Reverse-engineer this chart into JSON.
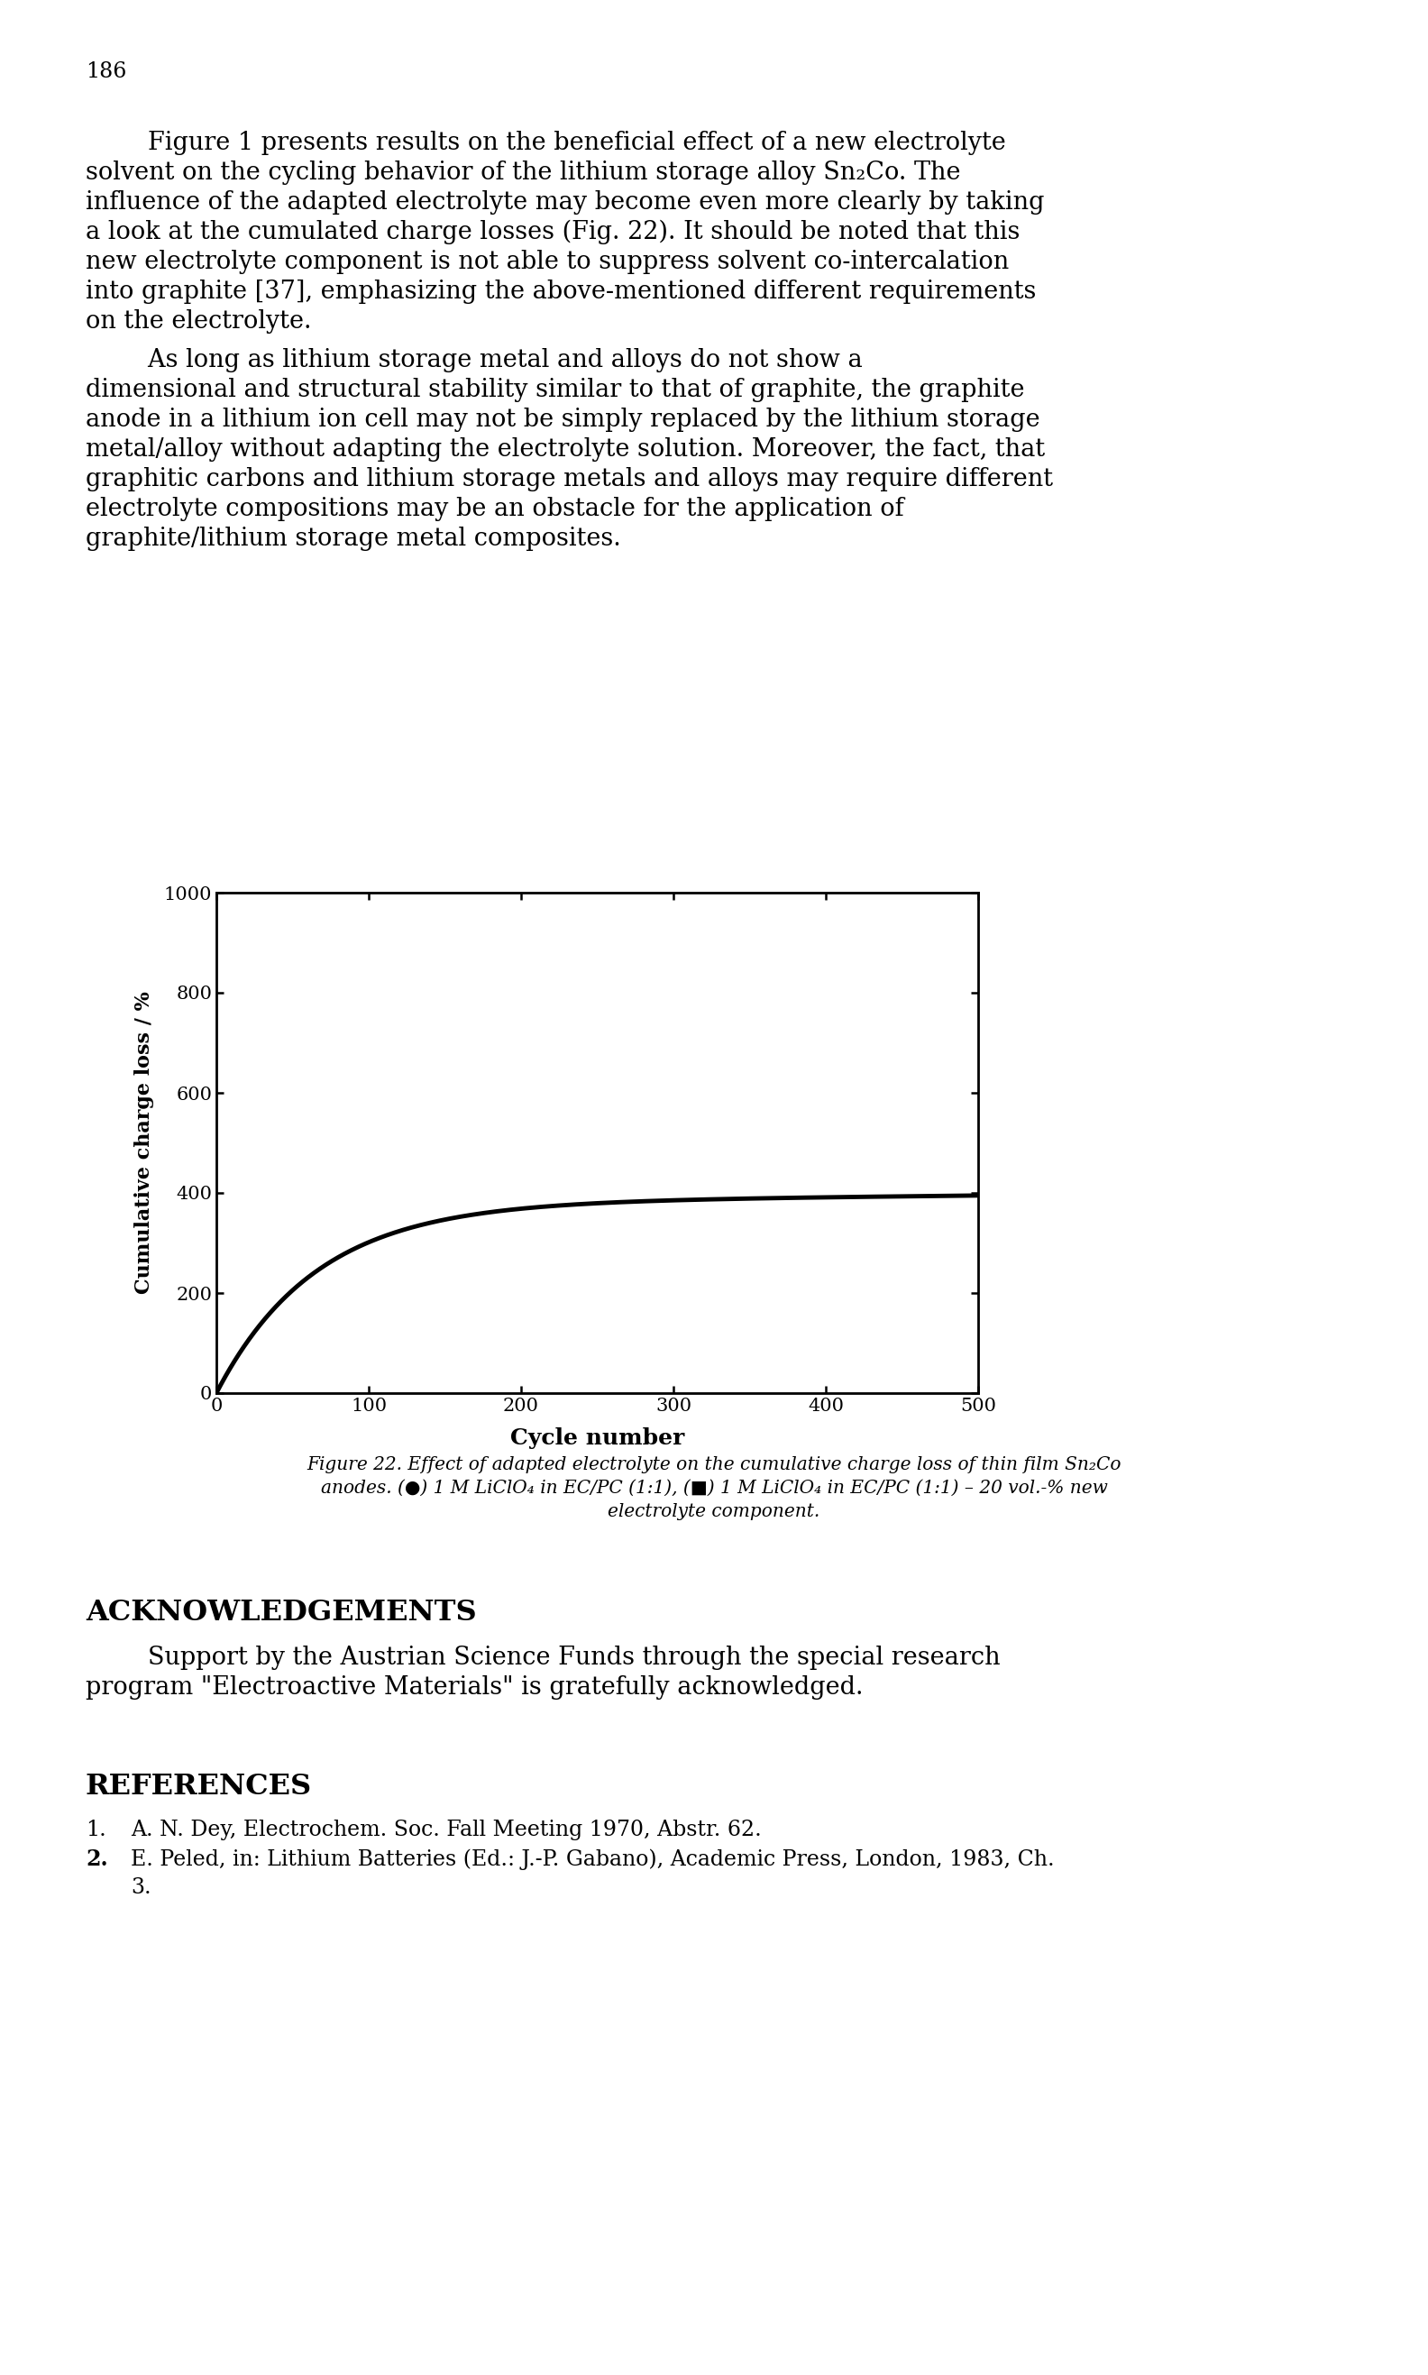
{
  "page_number": "186",
  "para1_indent": "        Figure 1 presents results on the beneficial effect of a new electrolyte",
  "para1_line2": "solvent on the cycling behavior of the lithium storage alloy Sn₂Co. The",
  "para1_line3": "influence of the adapted electrolyte may become even more clearly by taking",
  "para1_line4": "a look at the cumulated charge losses (Fig. 22). It should be noted that this",
  "para1_line5": "new electrolyte component is not able to suppress solvent co-intercalation",
  "para1_line6": "into graphite [37], emphasizing the above-mentioned different requirements",
  "para1_line7": "on the electrolyte.",
  "para2_indent": "        As long as lithium storage metal and alloys do not show a",
  "para2_line2": "dimensional and structural stability similar to that of graphite, the graphite",
  "para2_line3": "anode in a lithium ion cell may not be simply replaced by the lithium storage",
  "para2_line4": "metal/alloy without adapting the electrolyte solution. Moreover, the fact, that",
  "para2_line5": "graphitic carbons and lithium storage metals and alloys may require different",
  "para2_line6": "electrolyte compositions may be an obstacle for the application of",
  "para2_line7": "graphite/lithium storage metal composites.",
  "cap_line1": "Figure 22. Effect of adapted electrolyte on the cumulative charge loss of thin film Sn₂Co",
  "cap_line2": "anodes. (●) 1 M LiClO₄ in EC/PC (1:1), (■) 1 M LiClO₄ in EC/PC (1:1) – 20 vol.-% new",
  "cap_line3": "electrolyte component.",
  "ack_title": "ACKNOWLEDGEMENTS",
  "ack_line1": "        Support by the Austrian Science Funds through the special research",
  "ack_line2": "program \"Electroactive Materials\" is gratefully acknowledged.",
  "ref_title": "REFERENCES",
  "ref1_num": "1.",
  "ref1_text": "A. N. Dey, Electrochem. Soc. Fall Meeting 1970, Abstr. 62.",
  "ref2_num": "2.",
  "ref2_text": "E. Peled, in: Lithium Batteries (Ed.: J.-P. Gabano), Academic Press, London, 1983, Ch.",
  "ref2_cont": "3.",
  "xlabel": "Cycle number",
  "ylabel": "Cumulative charge loss / %",
  "xmin": 0,
  "xmax": 500,
  "ymin": 0,
  "ymax": 1000,
  "xticks": [
    0,
    100,
    200,
    300,
    400,
    500
  ],
  "yticks": [
    0,
    200,
    400,
    600,
    800,
    1000
  ],
  "bg_color": "#ffffff",
  "text_color": "#000000",
  "curve_color": "#000000",
  "body_fontsize": 19.5,
  "page_num_fontsize": 17,
  "cap_fontsize": 14.5,
  "ack_title_fontsize": 23,
  "ref_title_fontsize": 23,
  "ref_body_fontsize": 17,
  "tick_fontsize": 15,
  "axis_label_fontsize": 16
}
